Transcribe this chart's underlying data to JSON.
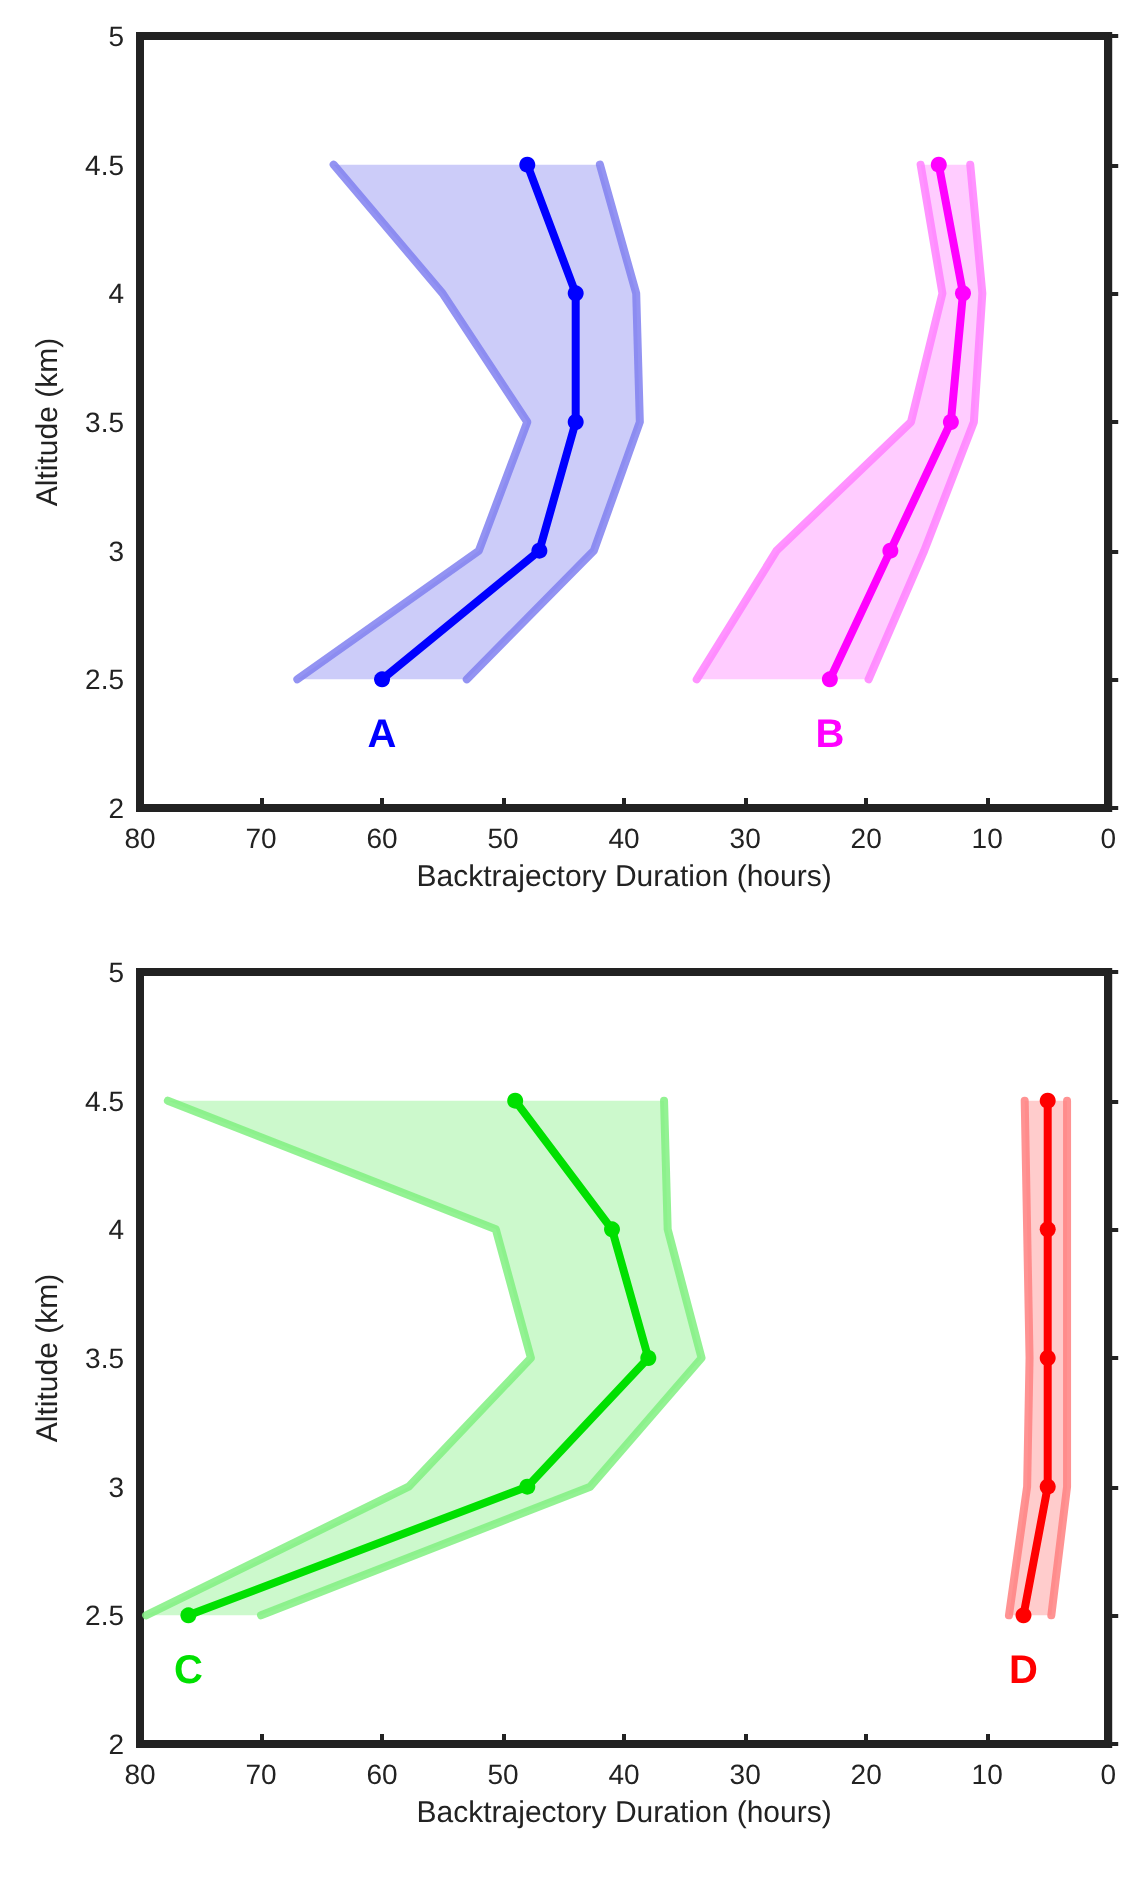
{
  "chart_data": [
    {
      "type": "line",
      "xlabel": "Backtrajectory Duration (hours)",
      "ylabel": "Altitude (km)",
      "xlim": [
        80,
        0
      ],
      "xticks": [
        80,
        70,
        60,
        50,
        40,
        30,
        20,
        10,
        0
      ],
      "ylim": [
        2,
        5
      ],
      "yticks": [
        2,
        2.5,
        3,
        3.5,
        4,
        4.5,
        5
      ],
      "marker": "circle",
      "line_style": "solid",
      "series": [
        {
          "color": "#8080f0",
          "marker": "none",
          "x": [
            53,
            42.5,
            38.7,
            39,
            42
          ],
          "values": [
            2.5,
            3,
            3.5,
            4,
            4.5
          ]
        },
        {
          "color": "#8080f0",
          "marker": "none",
          "x": [
            67,
            52,
            48,
            55,
            64
          ],
          "values": [
            2.5,
            3,
            3.5,
            4,
            4.5
          ]
        },
        {
          "name": "A",
          "color": "#0000ff",
          "x": [
            60,
            47,
            44,
            44,
            48
          ],
          "values": [
            2.5,
            3,
            3.5,
            4,
            4.5
          ]
        },
        {
          "color": "#ff80ff",
          "marker": "none",
          "x": [
            19.8,
            15.2,
            11.1,
            10.4,
            11.4
          ],
          "values": [
            2.5,
            3,
            3.5,
            4,
            4.5
          ]
        },
        {
          "color": "#ff80ff",
          "marker": "none",
          "x": [
            34,
            27.4,
            16.3,
            13.7,
            15.5
          ],
          "values": [
            2.5,
            3,
            3.5,
            4,
            4.5
          ]
        },
        {
          "name": "B",
          "color": "#ff00ff",
          "x": [
            23,
            18,
            13,
            12,
            14
          ],
          "values": [
            2.5,
            3,
            3.5,
            4,
            4.5
          ]
        }
      ]
    },
    {
      "type": "line",
      "xlabel": "Backtrajectory Duration (hours)",
      "ylabel": "Altitude (km)",
      "xlim": [
        80,
        0
      ],
      "xticks": [
        80,
        70,
        60,
        50,
        40,
        30,
        20,
        10,
        0
      ],
      "ylim": [
        2,
        5
      ],
      "yticks": [
        2,
        2.5,
        3,
        3.5,
        4,
        4.5,
        5
      ],
      "marker": "circle",
      "line_style": "solid",
      "series": [
        {
          "color": "#80f080",
          "marker": "none",
          "x": [
            70,
            42.8,
            33.6,
            36.4,
            36.7
          ],
          "values": [
            2.5,
            3,
            3.5,
            4,
            4.5
          ]
        },
        {
          "color": "#80f080",
          "marker": "none",
          "x": [
            79.5,
            57.8,
            47.7,
            50.6,
            77.7
          ],
          "values": [
            2.5,
            3,
            3.5,
            4,
            4.5
          ]
        },
        {
          "name": "C",
          "color": "#00e000",
          "x": [
            76,
            48,
            38,
            41,
            49
          ],
          "values": [
            2.5,
            3,
            3.5,
            4,
            4.5
          ]
        },
        {
          "color": "#ff8080",
          "marker": "none",
          "x": [
            4.7,
            3.4,
            3.4,
            3.4,
            3.4
          ],
          "values": [
            2.5,
            3,
            3.5,
            4,
            4.5
          ]
        },
        {
          "color": "#ff8080",
          "marker": "none",
          "x": [
            8.2,
            6.7,
            6.5,
            6.7,
            6.9
          ],
          "values": [
            2.5,
            3,
            3.5,
            4,
            4.5
          ]
        },
        {
          "name": "D",
          "color": "#ff0000",
          "x": [
            7,
            5,
            5,
            5,
            5
          ],
          "values": [
            2.5,
            3,
            3.5,
            4,
            4.5
          ]
        }
      ]
    }
  ]
}
